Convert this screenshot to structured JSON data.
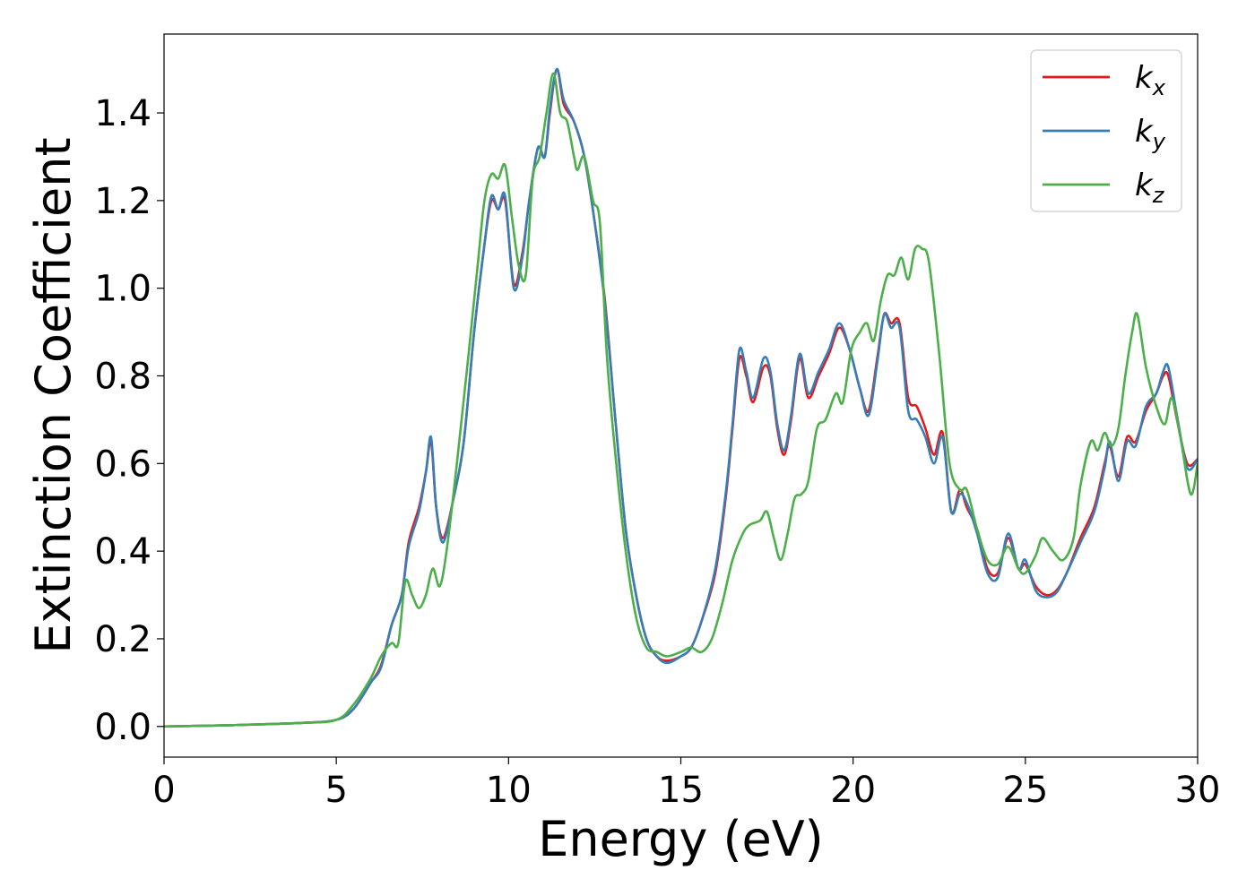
{
  "chart_data": {
    "type": "line",
    "xlabel": "Energy (eV)",
    "ylabel": "Extinction Coefficient",
    "xlim": [
      0,
      30
    ],
    "ylim": [
      -0.07,
      1.58
    ],
    "x_ticks": [
      "0",
      "5",
      "10",
      "15",
      "20",
      "25",
      "30"
    ],
    "y_ticks": [
      "0.0",
      "0.2",
      "0.4",
      "0.6",
      "0.8",
      "1.0",
      "1.2",
      "1.4"
    ],
    "grid": false,
    "legend_position": "top-right",
    "series": [
      {
        "name": "k_x",
        "legend_base": "k",
        "legend_sub": "x",
        "color": "#e41a1c",
        "points": [
          [
            0,
            0
          ],
          [
            2,
            0.003
          ],
          [
            4,
            0.008
          ],
          [
            5,
            0.015
          ],
          [
            5.5,
            0.04
          ],
          [
            6,
            0.1
          ],
          [
            6.3,
            0.14
          ],
          [
            6.6,
            0.23
          ],
          [
            6.9,
            0.3
          ],
          [
            7.1,
            0.42
          ],
          [
            7.4,
            0.5
          ],
          [
            7.6,
            0.58
          ],
          [
            7.75,
            0.65
          ],
          [
            7.9,
            0.5
          ],
          [
            8.1,
            0.43
          ],
          [
            8.4,
            0.52
          ],
          [
            8.7,
            0.65
          ],
          [
            9.0,
            0.9
          ],
          [
            9.3,
            1.1
          ],
          [
            9.5,
            1.2
          ],
          [
            9.7,
            1.18
          ],
          [
            9.9,
            1.2
          ],
          [
            10.15,
            1.01
          ],
          [
            10.4,
            1.08
          ],
          [
            10.6,
            1.2
          ],
          [
            10.85,
            1.32
          ],
          [
            11.05,
            1.3
          ],
          [
            11.2,
            1.4
          ],
          [
            11.4,
            1.5
          ],
          [
            11.6,
            1.42
          ],
          [
            11.9,
            1.38
          ],
          [
            12.2,
            1.3
          ],
          [
            12.5,
            1.15
          ],
          [
            12.8,
            0.97
          ],
          [
            13.1,
            0.7
          ],
          [
            13.4,
            0.45
          ],
          [
            13.7,
            0.3
          ],
          [
            14.0,
            0.2
          ],
          [
            14.3,
            0.16
          ],
          [
            14.6,
            0.15
          ],
          [
            15.0,
            0.16
          ],
          [
            15.3,
            0.18
          ],
          [
            15.6,
            0.24
          ],
          [
            16.0,
            0.35
          ],
          [
            16.3,
            0.52
          ],
          [
            16.5,
            0.68
          ],
          [
            16.7,
            0.84
          ],
          [
            16.9,
            0.8
          ],
          [
            17.1,
            0.74
          ],
          [
            17.4,
            0.82
          ],
          [
            17.6,
            0.8
          ],
          [
            17.8,
            0.68
          ],
          [
            18.0,
            0.62
          ],
          [
            18.2,
            0.7
          ],
          [
            18.45,
            0.84
          ],
          [
            18.7,
            0.75
          ],
          [
            19.0,
            0.8
          ],
          [
            19.3,
            0.85
          ],
          [
            19.6,
            0.91
          ],
          [
            19.9,
            0.86
          ],
          [
            20.2,
            0.77
          ],
          [
            20.45,
            0.72
          ],
          [
            20.7,
            0.84
          ],
          [
            20.9,
            0.94
          ],
          [
            21.1,
            0.92
          ],
          [
            21.35,
            0.92
          ],
          [
            21.6,
            0.75
          ],
          [
            21.85,
            0.73
          ],
          [
            22.1,
            0.68
          ],
          [
            22.35,
            0.62
          ],
          [
            22.6,
            0.67
          ],
          [
            22.85,
            0.49
          ],
          [
            23.1,
            0.54
          ],
          [
            23.3,
            0.5
          ],
          [
            23.6,
            0.45
          ],
          [
            23.9,
            0.36
          ],
          [
            24.2,
            0.35
          ],
          [
            24.5,
            0.43
          ],
          [
            24.8,
            0.36
          ],
          [
            25.0,
            0.37
          ],
          [
            25.3,
            0.32
          ],
          [
            25.6,
            0.3
          ],
          [
            25.9,
            0.31
          ],
          [
            26.2,
            0.35
          ],
          [
            26.6,
            0.43
          ],
          [
            27.0,
            0.5
          ],
          [
            27.3,
            0.6
          ],
          [
            27.45,
            0.64
          ],
          [
            27.7,
            0.57
          ],
          [
            27.95,
            0.66
          ],
          [
            28.2,
            0.65
          ],
          [
            28.5,
            0.72
          ],
          [
            28.8,
            0.76
          ],
          [
            29.0,
            0.8
          ],
          [
            29.15,
            0.8
          ],
          [
            29.4,
            0.7
          ],
          [
            29.7,
            0.6
          ],
          [
            30.0,
            0.61
          ]
        ]
      },
      {
        "name": "k_y",
        "legend_base": "k",
        "legend_sub": "y",
        "color": "#377eb8",
        "points": [
          [
            0,
            0
          ],
          [
            2,
            0.003
          ],
          [
            4,
            0.008
          ],
          [
            5,
            0.015
          ],
          [
            5.5,
            0.04
          ],
          [
            6,
            0.1
          ],
          [
            6.3,
            0.135
          ],
          [
            6.6,
            0.23
          ],
          [
            6.9,
            0.3
          ],
          [
            7.1,
            0.41
          ],
          [
            7.4,
            0.49
          ],
          [
            7.6,
            0.58
          ],
          [
            7.75,
            0.66
          ],
          [
            7.9,
            0.5
          ],
          [
            8.1,
            0.42
          ],
          [
            8.4,
            0.52
          ],
          [
            8.7,
            0.65
          ],
          [
            9.0,
            0.9
          ],
          [
            9.3,
            1.1
          ],
          [
            9.5,
            1.21
          ],
          [
            9.7,
            1.18
          ],
          [
            9.9,
            1.21
          ],
          [
            10.15,
            1.0
          ],
          [
            10.4,
            1.07
          ],
          [
            10.6,
            1.2
          ],
          [
            10.85,
            1.32
          ],
          [
            11.05,
            1.3
          ],
          [
            11.2,
            1.41
          ],
          [
            11.4,
            1.5
          ],
          [
            11.6,
            1.43
          ],
          [
            11.9,
            1.38
          ],
          [
            12.2,
            1.3
          ],
          [
            12.5,
            1.15
          ],
          [
            12.8,
            0.96
          ],
          [
            13.1,
            0.7
          ],
          [
            13.4,
            0.45
          ],
          [
            13.7,
            0.3
          ],
          [
            14.0,
            0.2
          ],
          [
            14.3,
            0.16
          ],
          [
            14.6,
            0.145
          ],
          [
            15.0,
            0.16
          ],
          [
            15.3,
            0.18
          ],
          [
            15.6,
            0.24
          ],
          [
            16.0,
            0.36
          ],
          [
            16.3,
            0.53
          ],
          [
            16.5,
            0.69
          ],
          [
            16.7,
            0.86
          ],
          [
            16.9,
            0.81
          ],
          [
            17.1,
            0.75
          ],
          [
            17.4,
            0.84
          ],
          [
            17.6,
            0.81
          ],
          [
            17.8,
            0.69
          ],
          [
            18.0,
            0.63
          ],
          [
            18.2,
            0.71
          ],
          [
            18.45,
            0.85
          ],
          [
            18.7,
            0.76
          ],
          [
            19.0,
            0.81
          ],
          [
            19.3,
            0.86
          ],
          [
            19.6,
            0.92
          ],
          [
            19.9,
            0.86
          ],
          [
            20.2,
            0.77
          ],
          [
            20.45,
            0.71
          ],
          [
            20.7,
            0.83
          ],
          [
            20.9,
            0.94
          ],
          [
            21.1,
            0.91
          ],
          [
            21.35,
            0.91
          ],
          [
            21.6,
            0.72
          ],
          [
            21.85,
            0.7
          ],
          [
            22.1,
            0.66
          ],
          [
            22.35,
            0.6
          ],
          [
            22.6,
            0.66
          ],
          [
            22.85,
            0.49
          ],
          [
            23.1,
            0.53
          ],
          [
            23.3,
            0.51
          ],
          [
            23.6,
            0.44
          ],
          [
            23.9,
            0.35
          ],
          [
            24.2,
            0.34
          ],
          [
            24.5,
            0.44
          ],
          [
            24.8,
            0.36
          ],
          [
            25.0,
            0.38
          ],
          [
            25.3,
            0.31
          ],
          [
            25.6,
            0.295
          ],
          [
            25.9,
            0.305
          ],
          [
            26.2,
            0.35
          ],
          [
            26.6,
            0.42
          ],
          [
            27.0,
            0.49
          ],
          [
            27.3,
            0.59
          ],
          [
            27.45,
            0.65
          ],
          [
            27.7,
            0.56
          ],
          [
            27.95,
            0.65
          ],
          [
            28.2,
            0.64
          ],
          [
            28.5,
            0.73
          ],
          [
            28.8,
            0.76
          ],
          [
            29.0,
            0.81
          ],
          [
            29.15,
            0.82
          ],
          [
            29.4,
            0.71
          ],
          [
            29.7,
            0.59
          ],
          [
            30.0,
            0.61
          ]
        ]
      },
      {
        "name": "k_z",
        "legend_base": "k",
        "legend_sub": "z",
        "color": "#4daf4a",
        "points": [
          [
            0,
            0
          ],
          [
            2,
            0.003
          ],
          [
            4,
            0.008
          ],
          [
            5,
            0.015
          ],
          [
            5.5,
            0.05
          ],
          [
            6,
            0.11
          ],
          [
            6.3,
            0.16
          ],
          [
            6.6,
            0.19
          ],
          [
            6.8,
            0.19
          ],
          [
            7.0,
            0.33
          ],
          [
            7.2,
            0.3
          ],
          [
            7.4,
            0.27
          ],
          [
            7.6,
            0.3
          ],
          [
            7.8,
            0.36
          ],
          [
            8.0,
            0.32
          ],
          [
            8.2,
            0.4
          ],
          [
            8.5,
            0.6
          ],
          [
            8.8,
            0.82
          ],
          [
            9.1,
            1.05
          ],
          [
            9.3,
            1.2
          ],
          [
            9.5,
            1.26
          ],
          [
            9.7,
            1.25
          ],
          [
            9.9,
            1.28
          ],
          [
            10.1,
            1.16
          ],
          [
            10.3,
            1.05
          ],
          [
            10.5,
            1.03
          ],
          [
            10.7,
            1.25
          ],
          [
            10.9,
            1.3
          ],
          [
            11.1,
            1.4
          ],
          [
            11.3,
            1.49
          ],
          [
            11.5,
            1.4
          ],
          [
            11.7,
            1.38
          ],
          [
            11.9,
            1.3
          ],
          [
            12.0,
            1.27
          ],
          [
            12.2,
            1.3
          ],
          [
            12.45,
            1.2
          ],
          [
            12.65,
            1.15
          ],
          [
            12.85,
            0.85
          ],
          [
            13.1,
            0.62
          ],
          [
            13.4,
            0.4
          ],
          [
            13.7,
            0.25
          ],
          [
            14.0,
            0.18
          ],
          [
            14.3,
            0.17
          ],
          [
            14.6,
            0.16
          ],
          [
            15.0,
            0.17
          ],
          [
            15.3,
            0.18
          ],
          [
            15.6,
            0.17
          ],
          [
            15.9,
            0.2
          ],
          [
            16.2,
            0.28
          ],
          [
            16.5,
            0.38
          ],
          [
            16.8,
            0.44
          ],
          [
            17.0,
            0.46
          ],
          [
            17.3,
            0.47
          ],
          [
            17.5,
            0.49
          ],
          [
            17.7,
            0.43
          ],
          [
            17.9,
            0.38
          ],
          [
            18.1,
            0.44
          ],
          [
            18.3,
            0.52
          ],
          [
            18.5,
            0.53
          ],
          [
            18.7,
            0.56
          ],
          [
            18.95,
            0.68
          ],
          [
            19.2,
            0.7
          ],
          [
            19.5,
            0.76
          ],
          [
            19.7,
            0.74
          ],
          [
            19.95,
            0.86
          ],
          [
            20.2,
            0.9
          ],
          [
            20.4,
            0.92
          ],
          [
            20.6,
            0.88
          ],
          [
            20.8,
            0.97
          ],
          [
            21.0,
            1.03
          ],
          [
            21.2,
            1.03
          ],
          [
            21.4,
            1.07
          ],
          [
            21.6,
            1.02
          ],
          [
            21.8,
            1.09
          ],
          [
            22.0,
            1.09
          ],
          [
            22.2,
            1.06
          ],
          [
            22.5,
            0.85
          ],
          [
            22.8,
            0.6
          ],
          [
            23.1,
            0.54
          ],
          [
            23.3,
            0.54
          ],
          [
            23.6,
            0.45
          ],
          [
            23.9,
            0.38
          ],
          [
            24.2,
            0.37
          ],
          [
            24.5,
            0.41
          ],
          [
            24.8,
            0.36
          ],
          [
            25.0,
            0.35
          ],
          [
            25.3,
            0.39
          ],
          [
            25.5,
            0.43
          ],
          [
            25.8,
            0.4
          ],
          [
            26.1,
            0.38
          ],
          [
            26.4,
            0.43
          ],
          [
            26.6,
            0.55
          ],
          [
            26.9,
            0.65
          ],
          [
            27.1,
            0.63
          ],
          [
            27.3,
            0.67
          ],
          [
            27.5,
            0.64
          ],
          [
            27.7,
            0.68
          ],
          [
            27.9,
            0.8
          ],
          [
            28.1,
            0.9
          ],
          [
            28.25,
            0.94
          ],
          [
            28.5,
            0.82
          ],
          [
            28.8,
            0.73
          ],
          [
            29.05,
            0.69
          ],
          [
            29.25,
            0.75
          ],
          [
            29.5,
            0.66
          ],
          [
            29.8,
            0.53
          ],
          [
            30.0,
            0.6
          ]
        ]
      }
    ]
  }
}
